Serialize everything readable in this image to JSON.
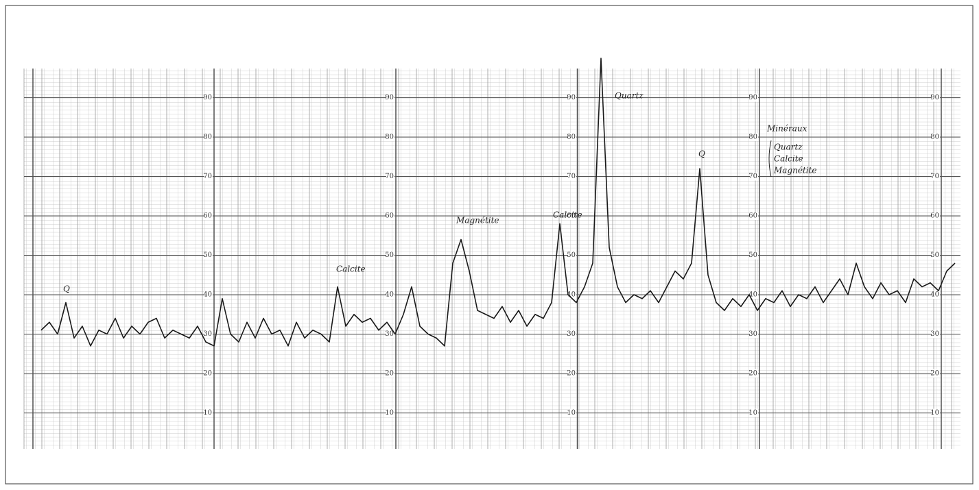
{
  "chart_data": {
    "type": "line",
    "series": [
      {
        "color": "#1a1a1a",
        "values": [
          31,
          33,
          30,
          38,
          29,
          32,
          27,
          31,
          30,
          34,
          29,
          32,
          30,
          33,
          34,
          29,
          31,
          30,
          29,
          32,
          28,
          27,
          39,
          30,
          28,
          33,
          29,
          34,
          30,
          31,
          27,
          33,
          29,
          31,
          30,
          28,
          42,
          32,
          35,
          33,
          34,
          31,
          33,
          30,
          35,
          42,
          32,
          30,
          29,
          27,
          48,
          54,
          46,
          36,
          35,
          34,
          37,
          33,
          36,
          32,
          35,
          34,
          38,
          58,
          40,
          38,
          42,
          48,
          100,
          52,
          42,
          38,
          40,
          39,
          41,
          38,
          42,
          46,
          44,
          48,
          72,
          45,
          38,
          36,
          39,
          37,
          40,
          36,
          39,
          38,
          41,
          37,
          40,
          39,
          42,
          38,
          41,
          44,
          40,
          48,
          42,
          39,
          43,
          40,
          41,
          38,
          44,
          42,
          43,
          41,
          46,
          48
        ]
      }
    ],
    "ylim": [
      0,
      100
    ],
    "yticks": [
      10,
      20,
      30,
      40,
      50,
      60,
      70,
      80,
      90
    ],
    "grid": true,
    "annotations": [
      "Q",
      "Calcite",
      "Magnétite",
      "Calcite",
      "Quartz",
      "Q",
      "Minéraux",
      "Quartz",
      "Calcite",
      "Magnétite"
    ]
  }
}
